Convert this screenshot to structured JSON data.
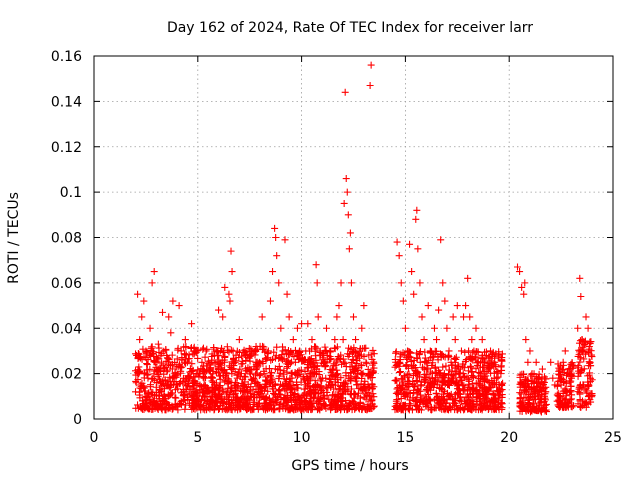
{
  "chart_data": {
    "type": "scatter",
    "title": "Day 162 of 2024, Rate Of TEC Index for receiver larr",
    "xlabel": "GPS time / hours",
    "ylabel": "ROTI / TECUs",
    "xlim": [
      0,
      25
    ],
    "ylim": [
      0,
      0.16
    ],
    "x_ticks": [
      0,
      5,
      10,
      15,
      20,
      25
    ],
    "y_ticks": [
      0,
      0.02,
      0.04,
      0.06,
      0.08,
      0.1,
      0.12,
      0.14,
      0.16
    ],
    "x_tick_labels": [
      "0",
      "5",
      "10",
      "15",
      "20",
      "25"
    ],
    "y_tick_labels": [
      "0",
      "0.02",
      "0.04",
      "0.06",
      "0.08",
      "0.1",
      "0.12",
      "0.14",
      "0.16"
    ],
    "grid": true,
    "marker": "+",
    "marker_color": "#ff0000",
    "series": [
      {
        "name": "ROTI",
        "points": [
          [
            2.0,
            0.012
          ],
          [
            2.05,
            0.028
          ],
          [
            2.1,
            0.055
          ],
          [
            2.15,
            0.02
          ],
          [
            2.2,
            0.035
          ],
          [
            2.25,
            0.015
          ],
          [
            2.3,
            0.045
          ],
          [
            2.35,
            0.008
          ],
          [
            2.4,
            0.052
          ],
          [
            2.5,
            0.03
          ],
          [
            2.6,
            0.018
          ],
          [
            2.7,
            0.04
          ],
          [
            2.8,
            0.06
          ],
          [
            2.9,
            0.065
          ],
          [
            2.95,
            0.025
          ],
          [
            3.0,
            0.014
          ],
          [
            3.1,
            0.033
          ],
          [
            3.2,
            0.022
          ],
          [
            3.3,
            0.047
          ],
          [
            3.4,
            0.01
          ],
          [
            3.5,
            0.028
          ],
          [
            3.6,
            0.045
          ],
          [
            3.7,
            0.038
          ],
          [
            3.8,
            0.052
          ],
          [
            3.9,
            0.02
          ],
          [
            4.0,
            0.015
          ],
          [
            4.1,
            0.05
          ],
          [
            4.2,
            0.03
          ],
          [
            4.3,
            0.012
          ],
          [
            4.4,
            0.035
          ],
          [
            4.5,
            0.025
          ],
          [
            4.6,
            0.018
          ],
          [
            4.7,
            0.042
          ],
          [
            4.8,
            0.01
          ],
          [
            4.9,
            0.03
          ],
          [
            5.0,
            0.02
          ],
          [
            5.1,
            0.015
          ],
          [
            5.2,
            0.025
          ],
          [
            5.3,
            0.018
          ],
          [
            5.4,
            0.03
          ],
          [
            5.5,
            0.012
          ],
          [
            5.6,
            0.022
          ],
          [
            5.7,
            0.018
          ],
          [
            5.8,
            0.028
          ],
          [
            5.9,
            0.015
          ],
          [
            6.0,
            0.048
          ],
          [
            6.1,
            0.03
          ],
          [
            6.2,
            0.045
          ],
          [
            6.3,
            0.058
          ],
          [
            6.4,
            0.02
          ],
          [
            6.5,
            0.055
          ],
          [
            6.55,
            0.052
          ],
          [
            6.6,
            0.074
          ],
          [
            6.65,
            0.065
          ],
          [
            6.7,
            0.03
          ],
          [
            6.8,
            0.025
          ],
          [
            6.9,
            0.018
          ],
          [
            7.0,
            0.035
          ],
          [
            7.1,
            0.02
          ],
          [
            7.2,
            0.015
          ],
          [
            7.3,
            0.028
          ],
          [
            7.4,
            0.012
          ],
          [
            7.5,
            0.022
          ],
          [
            7.6,
            0.03
          ],
          [
            7.7,
            0.018
          ],
          [
            7.8,
            0.025
          ],
          [
            7.9,
            0.012
          ],
          [
            8.0,
            0.032
          ],
          [
            8.1,
            0.045
          ],
          [
            8.2,
            0.02
          ],
          [
            8.3,
            0.015
          ],
          [
            8.4,
            0.03
          ],
          [
            8.5,
            0.052
          ],
          [
            8.6,
            0.065
          ],
          [
            8.7,
            0.084
          ],
          [
            8.75,
            0.08
          ],
          [
            8.8,
            0.072
          ],
          [
            8.9,
            0.06
          ],
          [
            9.0,
            0.04
          ],
          [
            9.1,
            0.03
          ],
          [
            9.2,
            0.079
          ],
          [
            9.3,
            0.055
          ],
          [
            9.4,
            0.045
          ],
          [
            9.5,
            0.02
          ],
          [
            9.6,
            0.035
          ],
          [
            9.7,
            0.025
          ],
          [
            9.8,
            0.04
          ],
          [
            9.9,
            0.03
          ],
          [
            10.0,
            0.042
          ],
          [
            10.1,
            0.018
          ],
          [
            10.2,
            0.03
          ],
          [
            10.3,
            0.042
          ],
          [
            10.4,
            0.02
          ],
          [
            10.5,
            0.035
          ],
          [
            10.6,
            0.025
          ],
          [
            10.7,
            0.068
          ],
          [
            10.75,
            0.06
          ],
          [
            10.8,
            0.045
          ],
          [
            10.9,
            0.03
          ],
          [
            11.0,
            0.018
          ],
          [
            11.1,
            0.025
          ],
          [
            11.2,
            0.04
          ],
          [
            11.3,
            0.015
          ],
          [
            11.4,
            0.03
          ],
          [
            11.5,
            0.022
          ],
          [
            11.6,
            0.035
          ],
          [
            11.7,
            0.045
          ],
          [
            11.8,
            0.05
          ],
          [
            11.9,
            0.06
          ],
          [
            12.0,
            0.035
          ],
          [
            12.05,
            0.095
          ],
          [
            12.1,
            0.144
          ],
          [
            12.15,
            0.106
          ],
          [
            12.2,
            0.1
          ],
          [
            12.25,
            0.09
          ],
          [
            12.3,
            0.075
          ],
          [
            12.35,
            0.082
          ],
          [
            12.4,
            0.06
          ],
          [
            12.5,
            0.045
          ],
          [
            12.6,
            0.035
          ],
          [
            12.7,
            0.02
          ],
          [
            12.8,
            0.03
          ],
          [
            12.9,
            0.04
          ],
          [
            13.0,
            0.05
          ],
          [
            13.1,
            0.025
          ],
          [
            13.2,
            0.015
          ],
          [
            13.3,
            0.147
          ],
          [
            13.35,
            0.156
          ],
          [
            13.4,
            0.02
          ],
          [
            14.6,
            0.078
          ],
          [
            14.7,
            0.072
          ],
          [
            14.8,
            0.06
          ],
          [
            14.9,
            0.052
          ],
          [
            15.0,
            0.04
          ],
          [
            15.1,
            0.03
          ],
          [
            15.2,
            0.077
          ],
          [
            15.3,
            0.065
          ],
          [
            15.4,
            0.055
          ],
          [
            15.5,
            0.088
          ],
          [
            15.55,
            0.092
          ],
          [
            15.6,
            0.075
          ],
          [
            15.7,
            0.06
          ],
          [
            15.8,
            0.045
          ],
          [
            15.9,
            0.035
          ],
          [
            16.0,
            0.025
          ],
          [
            16.1,
            0.05
          ],
          [
            16.2,
            0.03
          ],
          [
            16.3,
            0.02
          ],
          [
            16.4,
            0.04
          ],
          [
            16.5,
            0.035
          ],
          [
            16.6,
            0.048
          ],
          [
            16.7,
            0.079
          ],
          [
            16.8,
            0.06
          ],
          [
            16.9,
            0.052
          ],
          [
            17.0,
            0.04
          ],
          [
            17.1,
            0.03
          ],
          [
            17.2,
            0.025
          ],
          [
            17.3,
            0.045
          ],
          [
            17.4,
            0.035
          ],
          [
            17.5,
            0.05
          ],
          [
            17.6,
            0.02
          ],
          [
            17.7,
            0.03
          ],
          [
            17.8,
            0.045
          ],
          [
            17.9,
            0.05
          ],
          [
            18.0,
            0.062
          ],
          [
            18.1,
            0.045
          ],
          [
            18.2,
            0.035
          ],
          [
            18.3,
            0.03
          ],
          [
            18.4,
            0.04
          ],
          [
            18.5,
            0.025
          ],
          [
            18.6,
            0.02
          ],
          [
            18.7,
            0.035
          ],
          [
            18.8,
            0.018
          ],
          [
            18.9,
            0.028
          ],
          [
            19.0,
            0.022
          ],
          [
            19.1,
            0.03
          ],
          [
            19.2,
            0.015
          ],
          [
            19.3,
            0.025
          ],
          [
            19.4,
            0.018
          ],
          [
            19.5,
            0.012
          ],
          [
            19.6,
            0.02
          ],
          [
            20.4,
            0.067
          ],
          [
            20.5,
            0.065
          ],
          [
            20.6,
            0.058
          ],
          [
            20.7,
            0.055
          ],
          [
            20.75,
            0.06
          ],
          [
            20.8,
            0.035
          ],
          [
            20.9,
            0.025
          ],
          [
            21.0,
            0.03
          ],
          [
            21.1,
            0.02
          ],
          [
            21.2,
            0.012
          ],
          [
            21.3,
            0.025
          ],
          [
            21.4,
            0.018
          ],
          [
            21.5,
            0.015
          ],
          [
            21.6,
            0.022
          ],
          [
            21.7,
            0.01
          ],
          [
            22.0,
            0.025
          ],
          [
            22.1,
            0.018
          ],
          [
            22.2,
            0.015
          ],
          [
            22.4,
            0.01
          ],
          [
            22.5,
            0.015
          ],
          [
            22.6,
            0.025
          ],
          [
            22.7,
            0.03
          ],
          [
            22.8,
            0.02
          ],
          [
            22.9,
            0.012
          ],
          [
            23.0,
            0.018
          ],
          [
            23.3,
            0.04
          ],
          [
            23.4,
            0.062
          ],
          [
            23.45,
            0.054
          ],
          [
            23.5,
            0.035
          ],
          [
            23.6,
            0.03
          ],
          [
            23.7,
            0.045
          ],
          [
            23.8,
            0.04
          ],
          [
            23.9,
            0.025
          ]
        ],
        "dense_regions": [
          {
            "x_range": [
              2.0,
              13.5
            ],
            "y_range": [
              0.004,
              0.032
            ]
          },
          {
            "x_range": [
              14.5,
              19.7
            ],
            "y_range": [
              0.004,
              0.03
            ]
          },
          {
            "x_range": [
              20.5,
              21.8
            ],
            "y_range": [
              0.003,
              0.02
            ]
          },
          {
            "x_range": [
              22.3,
              23.1
            ],
            "y_range": [
              0.005,
              0.025
            ]
          },
          {
            "x_range": [
              23.3,
              24.0
            ],
            "y_range": [
              0.005,
              0.035
            ]
          }
        ],
        "dense_point_count": 2600
      }
    ]
  }
}
